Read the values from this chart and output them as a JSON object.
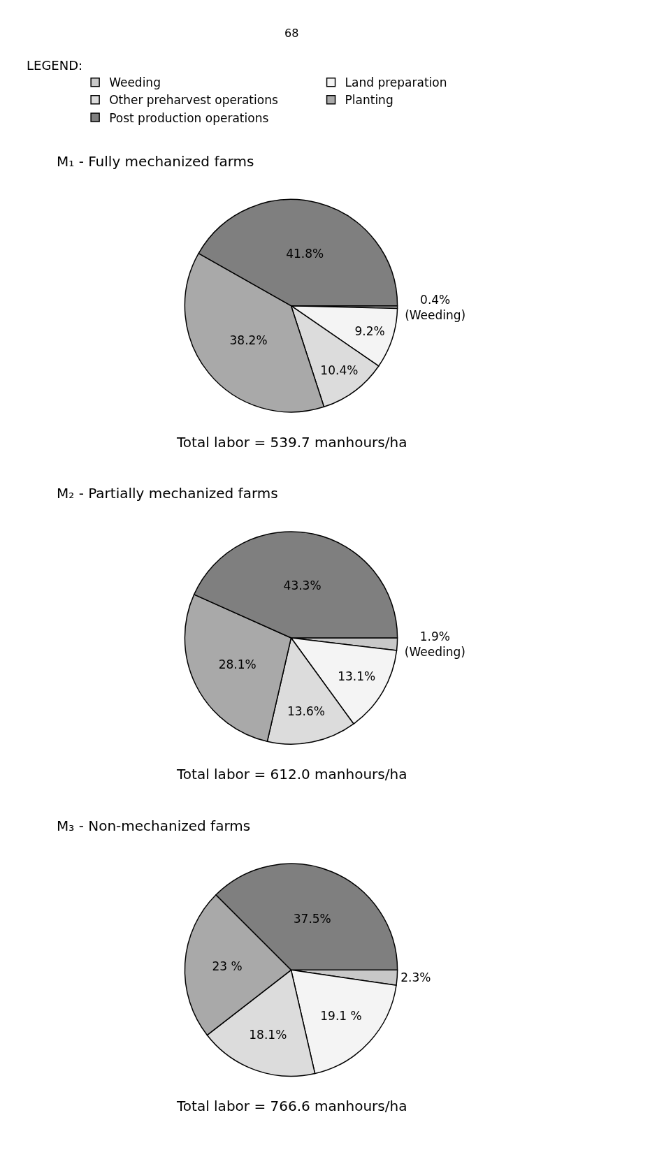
{
  "chart_data": [
    {
      "type": "pie",
      "title": "M₁ - Fully mechanized farms",
      "subtitle": "Total labor = 539.7 manhours/ha",
      "legend_title": "LEGEND:",
      "legend": "top",
      "annotations": [
        "68"
      ],
      "categories": [
        "Weeding",
        "Land preparation",
        "Other preharvest operations",
        "Planting",
        "Post production operations"
      ],
      "values": [
        0.4,
        9.2,
        10.4,
        38.2,
        41.8
      ],
      "value_labels": [
        "0.4%\n(Weeding)",
        "9.2%",
        "10.4%",
        "38.2%",
        "41.8%"
      ],
      "colors": [
        "#c8c8c8",
        "#f4f4f4",
        "#dcdcdc",
        "#a9a9a9",
        "#7f7f7f"
      ]
    },
    {
      "type": "pie",
      "title": "M₂ - Partially mechanized farms",
      "subtitle": "Total labor = 612.0 manhours/ha",
      "categories": [
        null,
        null,
        null,
        null,
        null
      ],
      "values": [
        1.9,
        13.1,
        13.6,
        28.1,
        43.3
      ],
      "value_labels": [
        "1.9%\n(Weeding)",
        "13.1%",
        "13.6%",
        "28.1%",
        "43.3%"
      ],
      "colors": [
        "#c8c8c8",
        "#f4f4f4",
        "#dcdcdc",
        "#a9a9a9",
        "#7f7f7f"
      ]
    },
    {
      "type": "pie",
      "title": "M₃ - Non-mechanized farms",
      "subtitle": "Total labor = 766.6 manhours/ha",
      "categories": [
        null,
        null,
        null,
        null,
        null
      ],
      "values": [
        2.3,
        19.1,
        18.1,
        23,
        37.5
      ],
      "value_labels": [
        "2.3%",
        "19.1 %",
        "18.1%",
        "23 %",
        "37.5%"
      ],
      "colors": [
        "#c8c8c8",
        "#f4f4f4",
        "#dcdcdc",
        "#a9a9a9",
        "#7f7f7f"
      ]
    }
  ]
}
